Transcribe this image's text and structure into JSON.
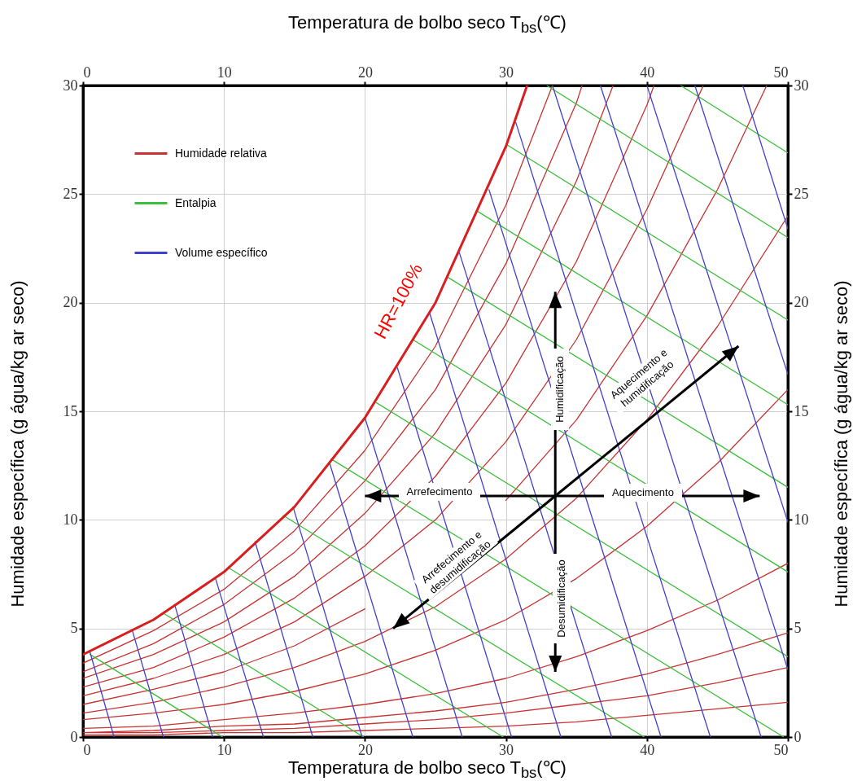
{
  "chart_data": {
    "type": "line",
    "xlabel": "Temperatura de bolbo seco T$_{bs}$(℃)",
    "x2label": "Temperatura de bolbo seco T$_{bs}$(℃)",
    "ylabel": "Humidade específica (g água/kg ar seco)",
    "y2label": "Humidade específica (g água/kg ar seco)",
    "xlim": [
      0,
      50
    ],
    "xticks": [
      0,
      10,
      20,
      30,
      40,
      50
    ],
    "x2lim": [
      0,
      50
    ],
    "x2ticks": [
      0,
      10,
      20,
      30,
      40,
      50
    ],
    "ylim": [
      0,
      30
    ],
    "yticks": [
      0,
      5,
      10,
      15,
      20,
      25,
      30
    ],
    "y2lim": [
      0,
      30
    ],
    "y2ticks": [
      0,
      5,
      10,
      15,
      20,
      25,
      30
    ],
    "grid": true,
    "legend": "top left",
    "annotations": [
      "HR=100%",
      "Humidificação",
      "Aquecimento e humidificação",
      "Arrefecimento",
      "Aquecimento",
      "Arrefecimento e desumidificação",
      "Desumidificação"
    ],
    "series": [
      {
        "name": "Humidade relativa",
        "color": "#c83232",
        "x": [
          0,
          5,
          10,
          15,
          20,
          25,
          30,
          33.3,
          null,
          0,
          5,
          10,
          15,
          20,
          25,
          30,
          35,
          35.4,
          null,
          0,
          5,
          10,
          15,
          20,
          25,
          30,
          35,
          37.6,
          null,
          0,
          5,
          10,
          15,
          20,
          25,
          30,
          35,
          40,
          40.5,
          null,
          0,
          5,
          10,
          15,
          20,
          25,
          30,
          35,
          40,
          44.0,
          null,
          0,
          5,
          10,
          15,
          20,
          25,
          30,
          35,
          40,
          45,
          48.5,
          null,
          0,
          5,
          10,
          15,
          20,
          25,
          30,
          35,
          40,
          45,
          50,
          null,
          0,
          5,
          10,
          15,
          20,
          25,
          30,
          35,
          40,
          45,
          50,
          null,
          0,
          5,
          10,
          15,
          20,
          25,
          30,
          35,
          40,
          45,
          50,
          null,
          0,
          5,
          10,
          15,
          20,
          25,
          30,
          35,
          40,
          45,
          50,
          null,
          0,
          5,
          10,
          15,
          20,
          25,
          30,
          35,
          40,
          45,
          50,
          null,
          0,
          5,
          10,
          15,
          20,
          25,
          30,
          35,
          40,
          45,
          50
        ],
        "values": [
          3.4,
          4.9,
          6.8,
          9.5,
          13.2,
          18.0,
          24.5,
          30,
          null,
          3.0,
          4.3,
          6.1,
          8.5,
          11.8,
          16.0,
          21.8,
          29.2,
          30,
          null,
          2.7,
          3.8,
          5.3,
          7.4,
          10.3,
          14.0,
          19.0,
          25.6,
          30,
          null,
          2.3,
          3.2,
          4.6,
          6.4,
          8.8,
          12.0,
          16.3,
          21.9,
          29.1,
          30,
          null,
          1.9,
          2.7,
          3.8,
          5.3,
          7.4,
          10.0,
          13.6,
          18.3,
          24.3,
          30,
          null,
          1.5,
          2.2,
          3.0,
          4.2,
          5.9,
          null,
          10.9,
          14.6,
          19.4,
          25.2,
          30,
          null,
          1.1,
          1.6,
          2.3,
          3.2,
          4.4,
          6.0,
          8.2,
          11.0,
          14.6,
          18.9,
          24.0,
          null,
          0.8,
          1.1,
          1.5,
          2.1,
          2.9,
          4.0,
          5.4,
          7.3,
          9.7,
          12.6,
          16.0,
          null,
          0.4,
          0.5,
          0.8,
          1.1,
          1.5,
          2.0,
          2.7,
          3.7,
          4.9,
          6.3,
          8.0,
          null,
          0.2,
          0.3,
          0.5,
          0.6,
          0.9,
          1.2,
          1.6,
          2.2,
          2.9,
          3.8,
          4.8,
          null,
          0.2,
          0.2,
          0.3,
          0.4,
          0.6,
          0.8,
          1.1,
          1.5,
          1.9,
          2.5,
          3.2,
          null,
          0.1,
          0.1,
          0.2,
          0.2,
          0.3,
          0.4,
          0.5,
          0.7,
          1.0,
          1.3,
          1.6
        ]
      },
      {
        "name": "Entalpia",
        "color": "#3cbf3c",
        "x": [
          0.5,
          9.9,
          null,
          5.7,
          19.9,
          null,
          10.3,
          29.8,
          null,
          14.2,
          39.8,
          null,
          17.6,
          49.7,
          null,
          20.8,
          50,
          null,
          23.4,
          50,
          null,
          25.8,
          50,
          null,
          28,
          50,
          null,
          30,
          50,
          null,
          32.9,
          50,
          null,
          42.4,
          50
        ],
        "values": [
          3.8,
          0,
          null,
          5.7,
          0,
          null,
          7.8,
          0,
          null,
          10.2,
          0,
          null,
          12.8,
          0,
          null,
          15.4,
          3.7,
          null,
          18.3,
          7.6,
          null,
          21.2,
          11.5,
          null,
          24.2,
          15.3,
          null,
          27.3,
          19.2,
          null,
          30,
          23.0,
          null,
          30,
          26.9
        ]
      },
      {
        "name": "Volume específico",
        "color": "#4040d0",
        "x": [
          2.2,
          0.5,
          null,
          5.7,
          3.5,
          null,
          9.2,
          6.5,
          null,
          12.8,
          9.4,
          null,
          16.3,
          12.2,
          null,
          19.8,
          14.9,
          null,
          23.4,
          17.5,
          null,
          26.9,
          20.0,
          null,
          30.4,
          22.3,
          null,
          33.9,
          24.6,
          null,
          37.5,
          26.7,
          null,
          41.0,
          28.8,
          null,
          44.5,
          30.7,
          null,
          48.1,
          33.3,
          null,
          50,
          36.7,
          null,
          50,
          40.0,
          null,
          50,
          43.4,
          null,
          50,
          46.8
        ],
        "values": [
          0,
          3.9,
          null,
          0,
          4.9,
          null,
          0,
          6.1,
          null,
          0,
          7.3,
          null,
          0,
          9.0,
          null,
          0,
          10.6,
          null,
          0,
          12.6,
          null,
          0,
          14.7,
          null,
          0,
          17.0,
          null,
          0,
          19.5,
          null,
          0,
          22.3,
          null,
          0,
          25.2,
          null,
          0,
          28.3,
          null,
          0,
          30,
          null,
          3.1,
          30,
          null,
          9.9,
          30,
          null,
          16.7,
          30,
          null,
          23.4,
          30
        ]
      },
      {
        "color": "#d81e1e",
        "x": [
          0,
          5,
          10,
          15,
          20,
          25,
          30,
          31.5
        ],
        "values": [
          3.8,
          5.4,
          7.6,
          10.6,
          14.7,
          20.0,
          27.2,
          30
        ]
      }
    ]
  }
}
